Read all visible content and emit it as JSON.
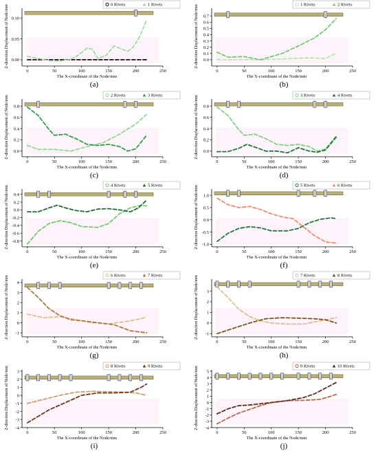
{
  "x_label": "The X-coordinate of the Node/mm",
  "y_label": "Z-direction Displacement of Node/mm",
  "chart_data": [
    {
      "type": "line",
      "caption": "(a)",
      "xlabel": "The X-coordinate of the Node/mm",
      "ylabel": "Z-direction Displacement of Node/mm",
      "xlim": [
        -10,
        250
      ],
      "xticks": [
        0,
        50,
        100,
        150,
        200,
        250
      ],
      "ylim": [
        -0.015,
        0.12
      ],
      "yticks": [
        0.0,
        0.05,
        0.1
      ],
      "ytick_labels": [
        "0.00",
        "0.05",
        "0.10"
      ],
      "bar_y": 0.112,
      "rivet_x": [
        200
      ],
      "legend_position": "top-right",
      "series": [
        {
          "name": "0 Rivets",
          "color": "#111111",
          "width": 1.8,
          "x": [
            0,
            30,
            60,
            90,
            120,
            150,
            180,
            210,
            220
          ],
          "y": [
            0,
            0,
            0,
            0,
            0,
            0,
            0,
            0,
            0
          ]
        },
        {
          "name": "1 Rivets",
          "color": "#8fd88f",
          "width": 1.5,
          "x": [
            0,
            20,
            40,
            60,
            80,
            95,
            110,
            120,
            130,
            145,
            160,
            175,
            185,
            195,
            205,
            212,
            220
          ],
          "y": [
            0.008,
            0.003,
            -0.002,
            -0.003,
            0.001,
            0.012,
            0.028,
            0.025,
            0.003,
            0.01,
            0.033,
            0.025,
            0.02,
            0.03,
            0.05,
            0.07,
            0.095
          ]
        }
      ]
    },
    {
      "type": "line",
      "caption": "(b)",
      "xlabel": "The X-coordinate of the Node/mm",
      "ylabel": "Z-direction Displacement of Node/mm",
      "xlim": [
        -10,
        250
      ],
      "xticks": [
        0,
        50,
        100,
        150,
        200,
        250
      ],
      "ylim": [
        -0.1,
        0.8
      ],
      "yticks": [
        0.0,
        0.1,
        0.2,
        0.3,
        0.4,
        0.5,
        0.6,
        0.7
      ],
      "ytick_labels": [
        "0.0",
        "0.1",
        "0.2",
        "0.3",
        "0.4",
        "0.5",
        "0.6",
        "0.7"
      ],
      "bar_y": 0.72,
      "rivet_x": [
        20,
        200
      ],
      "legend_position": "top-right",
      "series": [
        {
          "name": "1 Rivets",
          "color": "#b5e8ae",
          "width": 1.8,
          "x": [
            0,
            20,
            50,
            80,
            110,
            140,
            170,
            200,
            220
          ],
          "y": [
            0.005,
            0.0,
            0.003,
            0.0,
            0.01,
            0.02,
            0.03,
            0.02,
            0.1
          ]
        },
        {
          "name": "2 Rivets",
          "color": "#6fcc6f",
          "width": 1.8,
          "x": [
            0,
            20,
            50,
            80,
            100,
            120,
            150,
            180,
            200,
            220
          ],
          "y": [
            0.12,
            0.04,
            0.05,
            0.0,
            0.05,
            0.1,
            0.22,
            0.35,
            0.48,
            0.66
          ]
        }
      ]
    },
    {
      "type": "line",
      "caption": "(c)",
      "xlabel": "The X-coordinate of the Node/mm",
      "ylabel": "Z-direction Displacement of Node/mm",
      "xlim": [
        -10,
        250
      ],
      "xticks": [
        0,
        50,
        100,
        150,
        200,
        250
      ],
      "ylim": [
        -0.1,
        0.9
      ],
      "yticks": [
        0.0,
        0.2,
        0.4,
        0.6,
        0.8
      ],
      "ytick_labels": [
        "0.0",
        "0.2",
        "0.4",
        "0.6",
        "0.8"
      ],
      "bar_y": 0.83,
      "rivet_x": [
        20,
        180,
        200
      ],
      "legend_position": "top-right",
      "series": [
        {
          "name": "2 Rivets",
          "color": "#8fd88f",
          "width": 1.8,
          "x": [
            0,
            20,
            50,
            80,
            110,
            140,
            170,
            200,
            220
          ],
          "y": [
            0.1,
            0.03,
            0.03,
            0.0,
            0.08,
            0.15,
            0.3,
            0.48,
            0.65
          ]
        },
        {
          "name": "3 Rivets",
          "color": "#2e9e4a",
          "width": 1.8,
          "x": [
            0,
            20,
            40,
            50,
            70,
            90,
            110,
            130,
            150,
            170,
            185,
            200,
            220
          ],
          "y": [
            0.78,
            0.63,
            0.38,
            0.28,
            0.3,
            0.22,
            0.12,
            0.1,
            0.12,
            0.08,
            0.0,
            0.04,
            0.28
          ]
        }
      ]
    },
    {
      "type": "line",
      "caption": "(d)",
      "xlabel": "The X-coordinate of the Node/mm",
      "ylabel": "Z-direction Displacement of Node/mm",
      "xlim": [
        -10,
        250
      ],
      "xticks": [
        0,
        50,
        100,
        150,
        200,
        250
      ],
      "ylim": [
        -0.1,
        0.9
      ],
      "yticks": [
        0.0,
        0.2,
        0.4,
        0.6,
        0.8
      ],
      "ytick_labels": [
        "0.0",
        "0.2",
        "0.4",
        "0.6",
        "0.8"
      ],
      "bar_y": 0.83,
      "rivet_x": [
        20,
        40,
        180,
        200
      ],
      "legend_position": "top-right",
      "series": [
        {
          "name": "3 Rivets",
          "color": "#7fd07f",
          "width": 1.8,
          "x": [
            0,
            20,
            40,
            50,
            70,
            90,
            110,
            130,
            150,
            170,
            185,
            200,
            220
          ],
          "y": [
            0.78,
            0.63,
            0.38,
            0.28,
            0.3,
            0.22,
            0.12,
            0.1,
            0.12,
            0.08,
            0.0,
            0.04,
            0.27
          ]
        },
        {
          "name": "4 Rivets",
          "color": "#1e7a3a",
          "width": 1.8,
          "x": [
            0,
            20,
            40,
            55,
            70,
            90,
            110,
            130,
            150,
            170,
            185,
            200,
            220
          ],
          "y": [
            -0.01,
            -0.01,
            0.05,
            0.12,
            0.07,
            0.0,
            0.0,
            -0.03,
            0.06,
            0.0,
            -0.02,
            0.02,
            0.25
          ]
        }
      ]
    },
    {
      "type": "line",
      "caption": "(e)",
      "xlabel": "The X-coordinate of the Node/mm",
      "ylabel": "Z-direction Displacement of Node/mm",
      "xlim": [
        -10,
        250
      ],
      "xticks": [
        0,
        50,
        100,
        150,
        200,
        250
      ],
      "ylim": [
        -0.95,
        0.5
      ],
      "yticks": [
        -0.8,
        -0.6,
        -0.4,
        -0.2,
        0.0,
        0.2,
        0.4
      ],
      "ytick_labels": [
        "-0.8",
        "-0.6",
        "-0.4",
        "-0.2",
        "0.0",
        "0.2",
        "0.4"
      ],
      "bar_y": 0.4,
      "rivet_x": [
        20,
        40,
        150,
        180,
        200
      ],
      "legend_position": "top-right",
      "series": [
        {
          "name": "4 Rivets",
          "color": "#6fcc6f",
          "width": 1.8,
          "x": [
            0,
            20,
            40,
            60,
            80,
            100,
            130,
            150,
            170,
            190,
            210,
            220
          ],
          "y": [
            -0.88,
            -0.55,
            -0.35,
            -0.28,
            -0.33,
            -0.43,
            -0.45,
            -0.35,
            -0.1,
            0.05,
            0.12,
            0.1
          ]
        },
        {
          "name": "5 Rivets",
          "color": "#1e6b30",
          "width": 1.8,
          "x": [
            0,
            20,
            40,
            55,
            70,
            90,
            110,
            130,
            150,
            170,
            190,
            205,
            220
          ],
          "y": [
            -0.05,
            -0.05,
            0.05,
            0.12,
            0.05,
            -0.02,
            -0.05,
            0.02,
            0.03,
            0.0,
            -0.05,
            0.05,
            0.25
          ]
        }
      ]
    },
    {
      "type": "line",
      "caption": "(f)",
      "xlabel": "The X-coordinate of the Node/mm",
      "ylabel": "Z-direction Displacement of Node/mm",
      "xlim": [
        -10,
        250
      ],
      "xticks": [
        0,
        50,
        100,
        150,
        200,
        250
      ],
      "ylim": [
        -1.1,
        1.2
      ],
      "yticks": [
        -1.0,
        -0.5,
        0.0,
        0.5,
        1.0
      ],
      "ytick_labels": [
        "-1.0",
        "-0.5",
        "0.0",
        "0.5",
        "1.0"
      ],
      "bar_y": 1.08,
      "rivet_x": [
        20,
        40,
        150,
        180,
        200
      ],
      "legend_position": "top-right",
      "series": [
        {
          "name": "5 Rivets",
          "color": "#1e7a3a",
          "width": 1.8,
          "x": [
            0,
            20,
            40,
            60,
            80,
            100,
            130,
            150,
            170,
            190,
            210,
            220
          ],
          "y": [
            -0.88,
            -0.55,
            -0.35,
            -0.28,
            -0.33,
            -0.45,
            -0.45,
            -0.35,
            -0.12,
            0.02,
            0.08,
            0.05
          ]
        },
        {
          "name": "6 Rivets",
          "color": "#f08a6a",
          "width": 1.8,
          "x": [
            0,
            20,
            40,
            60,
            80,
            100,
            120,
            140,
            160,
            180,
            200,
            220
          ],
          "y": [
            0.88,
            0.62,
            0.5,
            0.55,
            0.42,
            0.25,
            0.12,
            0.05,
            -0.3,
            -0.65,
            -0.9,
            -0.95
          ]
        }
      ]
    },
    {
      "type": "line",
      "caption": "(g)",
      "xlabel": "The X-coordinate of the Node/mm",
      "ylabel": "Z-direction Displacement of Node/mm",
      "xlim": [
        -10,
        250
      ],
      "xticks": [
        0,
        50,
        100,
        150,
        200,
        250
      ],
      "ylim": [
        -1.4,
        4.2
      ],
      "yticks": [
        -1,
        0,
        1,
        2,
        3,
        4
      ],
      "ytick_labels": [
        "-1",
        "0",
        "1",
        "2",
        "3",
        "4"
      ],
      "bar_y": 3.7,
      "rivet_x": [
        20,
        40,
        60,
        150,
        170,
        190,
        210
      ],
      "legend_position": "top-right",
      "series": [
        {
          "name": "6 Rivets",
          "color": "#e0bd8c",
          "width": 1.8,
          "x": [
            0,
            30,
            60,
            90,
            120,
            150,
            180,
            210,
            220
          ],
          "y": [
            0.85,
            0.5,
            0.6,
            0.3,
            0.0,
            -0.1,
            0.1,
            0.4,
            0.6
          ]
        },
        {
          "name": "7 Rivets",
          "color": "#a87a3c",
          "width": 1.8,
          "x": [
            0,
            20,
            40,
            60,
            80,
            100,
            130,
            160,
            190,
            220
          ],
          "y": [
            3.5,
            2.5,
            1.4,
            0.7,
            0.3,
            0.2,
            0.0,
            -0.2,
            -0.8,
            -1.0
          ]
        }
      ]
    },
    {
      "type": "line",
      "caption": "(h)",
      "xlabel": "The X-coordinate of the Node/mm",
      "ylabel": "Z-direction Displacement of Node/mm",
      "xlim": [
        -10,
        250
      ],
      "xticks": [
        0,
        50,
        100,
        150,
        200,
        250
      ],
      "ylim": [
        -1.3,
        4.0
      ],
      "yticks": [
        -1,
        0,
        1,
        2,
        3
      ],
      "ytick_labels": [
        "-1",
        "0",
        "1",
        "2",
        "3"
      ],
      "bar_y": 3.65,
      "rivet_x": [
        0,
        20,
        40,
        60,
        150,
        170,
        190,
        210
      ],
      "legend_position": "top-right",
      "series": [
        {
          "name": "7 Rivets",
          "color": "#e0bd8c",
          "width": 1.8,
          "x": [
            0,
            20,
            40,
            60,
            80,
            100,
            130,
            160,
            190,
            220
          ],
          "y": [
            3.4,
            2.4,
            1.3,
            0.6,
            0.2,
            0.0,
            -0.1,
            -0.1,
            0.2,
            0.5
          ]
        },
        {
          "name": "8 Rivets",
          "color": "#7a5420",
          "width": 1.8,
          "x": [
            0,
            30,
            60,
            90,
            120,
            150,
            180,
            200,
            220
          ],
          "y": [
            -1.0,
            -0.5,
            0.0,
            0.4,
            0.5,
            0.45,
            0.4,
            0.3,
            0.0
          ]
        }
      ]
    },
    {
      "type": "line",
      "caption": "(i)",
      "xlabel": "The X-coordinate of the Node/mm",
      "ylabel": "Z-direction Displacement of Node/mm",
      "xlim": [
        -10,
        250
      ],
      "xticks": [
        0,
        50,
        100,
        150,
        200,
        250
      ],
      "ylim": [
        -4.0,
        3.0
      ],
      "yticks": [
        -4,
        -3,
        -2,
        -1,
        0,
        1,
        2,
        3
      ],
      "ytick_labels": [
        "-4",
        "-3",
        "-2",
        "-1",
        "0",
        "1",
        "2",
        "3"
      ],
      "bar_y": 2.2,
      "rivet_x": [
        0,
        20,
        40,
        60,
        80,
        150,
        170,
        190,
        210
      ],
      "legend_position": "top-right",
      "series": [
        {
          "name": "8 Rivets",
          "color": "#d59a6a",
          "width": 1.8,
          "x": [
            0,
            30,
            60,
            90,
            120,
            150,
            180,
            200,
            220
          ],
          "y": [
            -1.0,
            -0.5,
            0.0,
            0.4,
            0.5,
            0.45,
            0.4,
            0.3,
            0.0
          ]
        },
        {
          "name": "9 Rivets",
          "color": "#6b3520",
          "width": 1.8,
          "x": [
            0,
            20,
            40,
            60,
            80,
            100,
            130,
            160,
            190,
            210,
            220
          ],
          "y": [
            -3.4,
            -2.6,
            -1.8,
            -1.2,
            -0.6,
            0.0,
            0.3,
            0.3,
            0.4,
            1.0,
            1.4
          ]
        }
      ]
    },
    {
      "type": "line",
      "caption": "(j)",
      "xlabel": "The X-coordinate of the Node/mm",
      "ylabel": "Z-direction Displacement of Node/mm",
      "xlim": [
        -10,
        250
      ],
      "xticks": [
        0,
        50,
        100,
        150,
        200,
        250
      ],
      "ylim": [
        -4.0,
        5.0
      ],
      "yticks": [
        -4,
        -3,
        -2,
        -1,
        0,
        1,
        2,
        3,
        4,
        5
      ],
      "ytick_labels": [
        "-4",
        "-3",
        "-2",
        "-1",
        "0",
        "1",
        "2",
        "3",
        "4",
        "5"
      ],
      "bar_y": 4.2,
      "rivet_x": [
        0,
        20,
        40,
        60,
        80,
        100,
        120,
        150,
        170,
        190,
        210
      ],
      "legend_position": "top-right",
      "series": [
        {
          "name": "9 Rivets",
          "color": "#b56848",
          "width": 1.8,
          "x": [
            0,
            20,
            40,
            60,
            80,
            100,
            130,
            160,
            190,
            210,
            220
          ],
          "y": [
            -3.4,
            -2.5,
            -1.7,
            -1.1,
            -0.5,
            0.0,
            0.3,
            0.35,
            0.5,
            1.0,
            1.3
          ]
        },
        {
          "name": "10 Rivets",
          "color": "#5a2a18",
          "width": 1.8,
          "x": [
            0,
            20,
            40,
            60,
            80,
            100,
            130,
            160,
            180,
            200,
            220
          ],
          "y": [
            -1.8,
            -1.0,
            -0.5,
            -0.4,
            -0.2,
            0.0,
            0.3,
            0.8,
            1.4,
            2.3,
            3.2
          ]
        }
      ]
    }
  ]
}
